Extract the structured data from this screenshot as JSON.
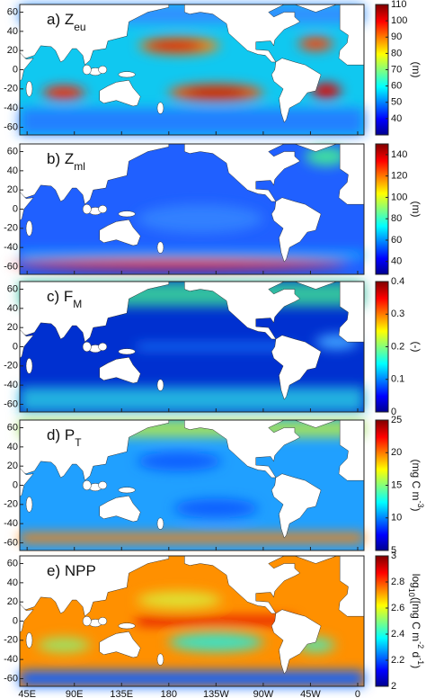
{
  "map": {
    "xlim": [
      38,
      366
    ],
    "ylim": [
      -68,
      68
    ],
    "xticks": [
      {
        "value": 45,
        "label": "45E"
      },
      {
        "value": 90,
        "label": "90E"
      },
      {
        "value": 135,
        "label": "135E"
      },
      180,
      {
        "value": 225,
        "label": "135W"
      },
      {
        "value": 270,
        "label": "90W"
      },
      {
        "value": 315,
        "label": "45W"
      },
      {
        "value": 360,
        "label": "0"
      }
    ],
    "yticks": [
      60,
      40,
      20,
      0,
      -20,
      -40,
      -60
    ]
  },
  "panels": [
    {
      "label": "a) Z",
      "label_sub": "eu",
      "colorbar": {
        "lim": [
          30,
          110
        ],
        "ticks": [
          40,
          50,
          60,
          70,
          80,
          90,
          100,
          110
        ]
      },
      "unit": [
        {
          "text": "(m)"
        }
      ]
    },
    {
      "label": "b) Z",
      "label_sub": "ml",
      "colorbar": {
        "lim": [
          28,
          150
        ],
        "ticks": [
          40,
          60,
          80,
          100,
          120,
          140
        ]
      },
      "unit": [
        {
          "text": "(m)"
        }
      ]
    },
    {
      "label": "c) F",
      "label_sub": "M",
      "colorbar": {
        "lim": [
          0,
          0.4
        ],
        "ticks": [
          0,
          0.1,
          0.2,
          0.3,
          0.4
        ]
      },
      "unit": [
        {
          "text": "(-)"
        }
      ]
    },
    {
      "label": "d) P",
      "label_sub": "T",
      "colorbar": {
        "lim": [
          5,
          25
        ],
        "ticks": [
          5,
          10,
          15,
          20,
          25
        ]
      },
      "unit": [
        {
          "text": "(mg C m"
        },
        {
          "text": "-3",
          "shift": "super"
        },
        {
          "text": ")"
        }
      ]
    },
    {
      "label": "e) NPP",
      "colorbar": {
        "lim": [
          2,
          3
        ],
        "ticks": [
          2,
          2.2,
          2.4,
          2.6,
          2.8,
          3
        ]
      },
      "unit": [
        {
          "text": "log"
        },
        {
          "text": "10",
          "shift": "sub"
        },
        {
          "text": "([mg C m"
        },
        {
          "text": "-2",
          "shift": "super"
        },
        {
          "text": " d"
        },
        {
          "text": "-1",
          "shift": "super"
        },
        {
          "text": ")"
        }
      ]
    }
  ]
}
